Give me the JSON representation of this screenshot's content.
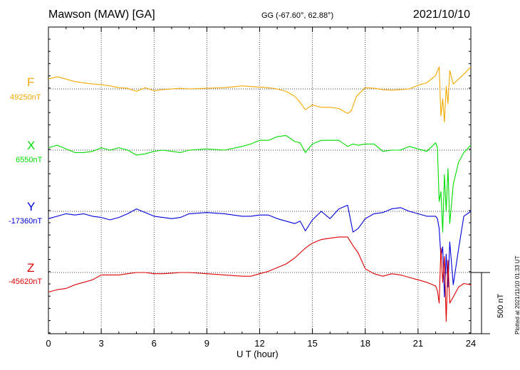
{
  "header": {
    "station": "Mawson (MAW)  [GA]",
    "coords": "GG (-67.60°,  62.88°)",
    "date": "2021/10/10"
  },
  "components": [
    {
      "name": "F",
      "baseline": "49250nT",
      "color": "#f5a800"
    },
    {
      "name": "X",
      "baseline": "6550nT",
      "color": "#00dd00"
    },
    {
      "name": "Y",
      "baseline": "-17360nT",
      "color": "#0000dd"
    },
    {
      "name": "Z",
      "baseline": "-45620nT",
      "color": "#dd0000"
    }
  ],
  "footer": {
    "xlabel": "U T (hour)",
    "plotted": "Plotted at 2021/11/10 01:33 UT",
    "scale": "500 nT"
  },
  "chart_data": {
    "type": "line",
    "xlabel": "U T (hour)",
    "ylabel": "",
    "xlim": [
      0,
      24
    ],
    "xticks": [
      "0",
      "3",
      "6",
      "9",
      "12",
      "15",
      "18",
      "21",
      "24"
    ],
    "units": "nT",
    "scale_bar_nT": 500,
    "grid": true,
    "series": [
      {
        "name": "F",
        "baseline": 49250,
        "color": "#f5a800",
        "x": [
          0,
          0.5,
          1,
          1.5,
          2,
          2.5,
          3,
          3.5,
          4,
          4.5,
          5,
          5.5,
          6,
          6.5,
          7,
          7.5,
          8,
          9,
          10,
          11,
          11.5,
          12,
          12.5,
          13,
          13.5,
          14,
          14.3,
          14.6,
          15,
          15.5,
          16,
          16.5,
          17,
          17.2,
          17.5,
          18,
          18.5,
          19,
          19.5,
          20,
          20.5,
          21,
          21.5,
          22,
          22.2,
          22.3,
          22.4,
          22.5,
          22.6,
          22.7,
          22.8,
          23,
          23.3,
          23.6,
          24
        ],
        "y": [
          80,
          100,
          80,
          60,
          50,
          40,
          35,
          25,
          10,
          5,
          -20,
          10,
          -15,
          -5,
          0,
          5,
          0,
          5,
          10,
          25,
          20,
          15,
          10,
          0,
          -20,
          -60,
          -110,
          -170,
          -130,
          -150,
          -150,
          -160,
          -200,
          -180,
          -60,
          10,
          5,
          -5,
          -10,
          -5,
          0,
          30,
          50,
          110,
          180,
          -220,
          -80,
          -270,
          20,
          -120,
          150,
          40,
          80,
          120,
          180
        ]
      },
      {
        "name": "X",
        "baseline": 6550,
        "color": "#00dd00",
        "x": [
          0,
          0.5,
          1,
          1.5,
          2,
          2.5,
          3,
          3.5,
          4,
          4.5,
          5,
          5.5,
          6,
          6.5,
          7,
          7.5,
          8,
          9,
          10,
          11,
          11.5,
          12,
          12.5,
          13,
          13.5,
          14,
          14.3,
          14.6,
          15,
          15.5,
          16,
          16.5,
          17,
          17.3,
          17.6,
          18,
          18.5,
          19,
          19.5,
          20,
          20.5,
          21,
          21.5,
          22,
          22.1,
          22.2,
          22.3,
          22.4,
          22.5,
          22.6,
          22.7,
          22.8,
          23,
          23.3,
          23.6,
          24
        ],
        "y": [
          20,
          40,
          10,
          -20,
          -20,
          -10,
          20,
          0,
          20,
          0,
          -40,
          -30,
          -10,
          0,
          -10,
          -20,
          0,
          10,
          0,
          30,
          50,
          80,
          80,
          110,
          120,
          70,
          60,
          -20,
          50,
          80,
          80,
          80,
          30,
          50,
          40,
          50,
          50,
          -10,
          0,
          0,
          30,
          10,
          -10,
          60,
          20,
          -420,
          -340,
          -670,
          -200,
          -500,
          -150,
          -600,
          -280,
          -100,
          -20,
          40
        ]
      },
      {
        "name": "Y",
        "baseline": -17360,
        "color": "#0000dd",
        "x": [
          0,
          0.5,
          1,
          1.5,
          2,
          2.5,
          3,
          3.5,
          4,
          4.5,
          5,
          5.5,
          6,
          6.5,
          7,
          7.5,
          8,
          9,
          10,
          11,
          11.5,
          12,
          12.5,
          13,
          13.5,
          14,
          14.3,
          14.6,
          15,
          15.5,
          16,
          16.5,
          17,
          17.3,
          17.6,
          18,
          18.5,
          19,
          19.5,
          20,
          20.5,
          21,
          21.5,
          22,
          22.1,
          22.2,
          22.3,
          22.4,
          22.5,
          22.6,
          22.7,
          22.8,
          23,
          23.3,
          23.6,
          24
        ],
        "y": [
          -60,
          -40,
          -20,
          -30,
          -20,
          -40,
          -50,
          -70,
          -50,
          -20,
          20,
          -10,
          -40,
          -50,
          -60,
          -50,
          -20,
          -10,
          -20,
          -40,
          -40,
          -30,
          -30,
          -60,
          -80,
          -100,
          -80,
          -160,
          -70,
          0,
          -60,
          20,
          50,
          -170,
          -140,
          -60,
          -20,
          -10,
          20,
          30,
          0,
          -20,
          -40,
          -40,
          -60,
          -140,
          -370,
          -290,
          -700,
          -350,
          -620,
          -250,
          -600,
          -310,
          -40,
          0
        ]
      },
      {
        "name": "Z",
        "baseline": -45620,
        "color": "#dd0000",
        "x": [
          0,
          0.5,
          1,
          1.5,
          2,
          2.5,
          3,
          3.5,
          4,
          4.5,
          5,
          5.5,
          6,
          6.5,
          7,
          7.5,
          8,
          9,
          10,
          11,
          11.5,
          12,
          12.5,
          13,
          13.5,
          14,
          14.3,
          14.6,
          15,
          15.5,
          16,
          16.5,
          17,
          17.3,
          17.6,
          18,
          18.5,
          19,
          19.5,
          20,
          20.5,
          21,
          21.5,
          22,
          22.1,
          22.2,
          22.3,
          22.4,
          22.5,
          22.6,
          22.7,
          22.8,
          23,
          23.3,
          23.6,
          24
        ],
        "y": [
          -160,
          -140,
          -130,
          -100,
          -80,
          -60,
          -20,
          -20,
          -20,
          -10,
          0,
          0,
          -10,
          -10,
          -5,
          0,
          0,
          -10,
          -20,
          -30,
          -30,
          -10,
          10,
          40,
          70,
          120,
          160,
          200,
          240,
          270,
          280,
          290,
          290,
          220,
          160,
          30,
          -10,
          -30,
          -10,
          -20,
          -40,
          -60,
          -80,
          -110,
          -150,
          -250,
          200,
          -80,
          130,
          -400,
          100,
          -250,
          -200,
          -120,
          -90,
          -100
        ]
      }
    ]
  }
}
